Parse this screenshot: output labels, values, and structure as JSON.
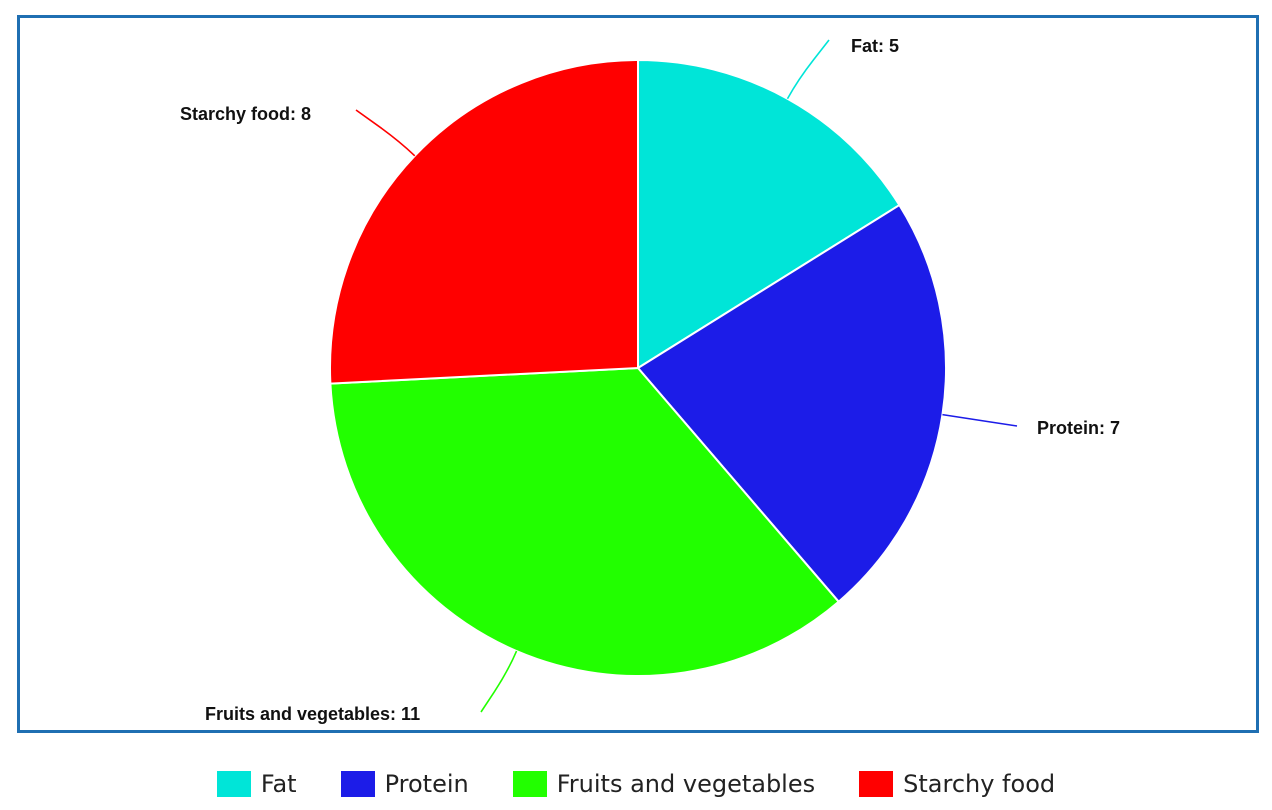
{
  "chart_data": {
    "type": "pie",
    "categories": [
      "Fat",
      "Protein",
      "Fruits and vegetables",
      "Starchy food"
    ],
    "values": [
      5,
      7,
      11,
      8
    ],
    "colors": [
      "#00e5d8",
      "#1c1ce8",
      "#22ff00",
      "#ff0000"
    ],
    "data_labels": [
      "Fat: 5",
      "Protein: 7",
      "Fruits and vegetables: 11",
      "Starchy food: 8"
    ],
    "start_angle_deg": 0,
    "direction": "clockwise",
    "legend": {
      "position": "bottom-center",
      "items": [
        {
          "label": "Fat",
          "color": "#00e5d8"
        },
        {
          "label": "Protein",
          "color": "#1c1ce8"
        },
        {
          "label": "Fruits and vegetables",
          "color": "#22ff00"
        },
        {
          "label": "Starchy food",
          "color": "#ff0000"
        }
      ]
    }
  }
}
